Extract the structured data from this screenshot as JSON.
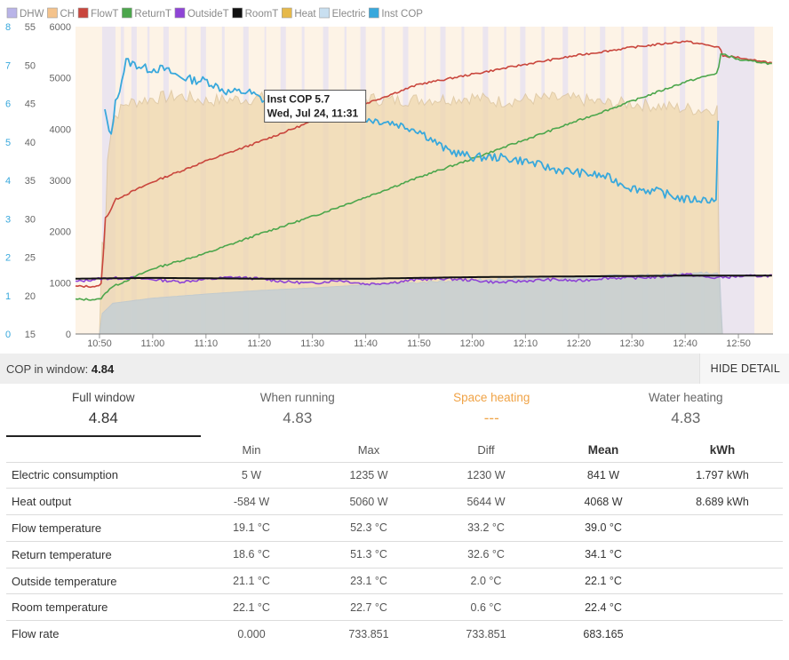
{
  "chart_data": {
    "type": "line",
    "legend": [
      {
        "name": "DHW",
        "color": "#b9b4e8"
      },
      {
        "name": "CH",
        "color": "#f4c38c"
      },
      {
        "name": "FlowT",
        "color": "#c9463d"
      },
      {
        "name": "ReturnT",
        "color": "#4ca64c"
      },
      {
        "name": "OutsideT",
        "color": "#8e44d6"
      },
      {
        "name": "RoomT",
        "color": "#111111"
      },
      {
        "name": "Heat",
        "color": "#e6b94a"
      },
      {
        "name": "Electric",
        "color": "#c8dff0"
      },
      {
        "name": "Inst COP",
        "color": "#38a8dc"
      }
    ],
    "axes": {
      "power": {
        "min": 0,
        "max": 6000,
        "ticks": [
          "0",
          "1000",
          "2000",
          "3000",
          "4000",
          "5000",
          "6000"
        ]
      },
      "temp": {
        "min": 15,
        "max": 55,
        "ticks": [
          "15",
          "20",
          "25",
          "30",
          "35",
          "40",
          "45",
          "50",
          "55"
        ]
      },
      "cop": {
        "min": 0,
        "max": 8,
        "ticks": [
          "0",
          "1",
          "2",
          "3",
          "4",
          "5",
          "6",
          "7",
          "8"
        ]
      },
      "time": {
        "start_min": 645.5,
        "end_min": 776.5,
        "ticks": [
          [
            "10:50",
            650
          ],
          [
            "11:00",
            660
          ],
          [
            "11:10",
            670
          ],
          [
            "11:20",
            680
          ],
          [
            "11:30",
            690
          ],
          [
            "11:40",
            700
          ],
          [
            "11:50",
            710
          ],
          [
            "12:00",
            720
          ],
          [
            "12:10",
            730
          ],
          [
            "12:20",
            740
          ],
          [
            "12:30",
            750
          ],
          [
            "12:40",
            760
          ],
          [
            "12:50",
            770
          ]
        ]
      }
    },
    "series": [
      {
        "name": "FlowT",
        "unit": "°C",
        "x": [
          645.5,
          650,
          650.5,
          651,
          652,
          653,
          660,
          670,
          680,
          690,
          700,
          710,
          720,
          730,
          740,
          750,
          760,
          766.5,
          767,
          770,
          772,
          774,
          776.5
        ],
        "y": [
          21.2,
          21.2,
          22,
          30,
          31,
          32.5,
          34.8,
          37.5,
          40,
          42.7,
          45,
          47.5,
          48.8,
          50.1,
          51.3,
          52.3,
          53.1,
          52.3,
          51.2,
          51,
          50.6,
          50.6,
          50.2
        ]
      },
      {
        "name": "ReturnT",
        "unit": "°C",
        "x": [
          645.5,
          650,
          650.5,
          651,
          652,
          660,
          670,
          680,
          690,
          700,
          710,
          720,
          730,
          740,
          750,
          760,
          766.2,
          766.5,
          767,
          770,
          772,
          774,
          776.5
        ],
        "y": [
          19.5,
          19.5,
          19.8,
          20.2,
          21,
          23.5,
          25.5,
          28,
          30.3,
          32.8,
          35.4,
          37.8,
          40.3,
          42.8,
          45.3,
          47.8,
          49,
          51.2,
          51.5,
          50.7,
          50.5,
          50.4,
          50.1
        ]
      },
      {
        "name": "OutsideT",
        "unit": "°C",
        "x": [
          645.5,
          650,
          655,
          660,
          665,
          670,
          675,
          680,
          685,
          690,
          695,
          700,
          705,
          710,
          715,
          720,
          725,
          730,
          735,
          740,
          745,
          750,
          755,
          760,
          765,
          770,
          776.5
        ],
        "y": [
          21.8,
          22.2,
          22.3,
          22.1,
          21.8,
          22.1,
          22.4,
          22.2,
          21.8,
          21.6,
          22,
          21.5,
          21.7,
          22.1,
          22.2,
          22.0,
          21.7,
          21.9,
          22.1,
          21.9,
          22.3,
          22.3,
          22.4,
          22.8,
          22.3,
          22.5,
          22.6
        ]
      },
      {
        "name": "RoomT",
        "unit": "°C",
        "x": [
          645.5,
          660,
          680,
          700,
          720,
          740,
          760,
          776.5
        ],
        "y": [
          22.2,
          22.3,
          22.2,
          22.2,
          22.4,
          22.5,
          22.6,
          22.6
        ]
      },
      {
        "name": "Heat",
        "unit": "W",
        "x": [
          645.5,
          650,
          650.5,
          650.8,
          651.5,
          652.5,
          655,
          660,
          665,
          670,
          675,
          680,
          685,
          690,
          695,
          700,
          705,
          710,
          715,
          720,
          725,
          730,
          735,
          740,
          745,
          750,
          755,
          760,
          763,
          766,
          766.2,
          766.5,
          767,
          776.5
        ],
        "y": [
          0,
          0,
          1800,
          900,
          3500,
          4200,
          4500,
          4600,
          4650,
          4550,
          4580,
          4600,
          4620,
          4580,
          4600,
          4600,
          4560,
          4580,
          4590,
          4620,
          4540,
          4580,
          4600,
          4580,
          4500,
          4500,
          4450,
          4400,
          4380,
          4400,
          1500,
          600,
          0,
          0
        ]
      },
      {
        "name": "Electric",
        "unit": "W",
        "x": [
          645.5,
          650,
          650.5,
          651.5,
          652.5,
          660,
          670,
          680,
          690,
          700,
          710,
          720,
          730,
          740,
          750,
          760,
          765,
          766.2,
          766.5,
          767,
          776.5
        ],
        "y": [
          0,
          0,
          400,
          500,
          600,
          700,
          780,
          850,
          900,
          960,
          1010,
          1050,
          1080,
          1110,
          1140,
          1170,
          1200,
          1230,
          1100,
          0,
          0
        ]
      },
      {
        "name": "Inst COP",
        "unit": "",
        "x": [
          651,
          651.5,
          652,
          653,
          654,
          655,
          657,
          659,
          662,
          665,
          668,
          670,
          674,
          678,
          682,
          686,
          690,
          695,
          700,
          705,
          710,
          715,
          720,
          725,
          730,
          735,
          740,
          745,
          750,
          755,
          760,
          763,
          765.5,
          766,
          766.2
        ],
        "y": [
          5.8,
          5.5,
          5.0,
          6.0,
          6.5,
          7.1,
          7.0,
          6.9,
          6.9,
          6.7,
          6.6,
          6.6,
          6.3,
          6.3,
          6.0,
          5.9,
          5.8,
          5.7,
          5.6,
          5.5,
          5.3,
          4.8,
          4.6,
          4.6,
          4.5,
          4.3,
          4.2,
          4.1,
          3.8,
          3.7,
          3.5,
          3.5,
          3.5,
          3.4,
          5.5
        ]
      }
    ],
    "tooltip": {
      "line1": "Inst COP 5.7",
      "line2": "Wed, Jul 24, 11:31",
      "anchor_min": 691,
      "anchor_cop": 5.7
    }
  },
  "summary": {
    "label": "COP in window:",
    "value": "4.84",
    "hide_detail": "HIDE DETAIL"
  },
  "tabs": [
    {
      "label": "Full window",
      "value": "4.84"
    },
    {
      "label": "When running",
      "value": "4.83"
    },
    {
      "label": "Space heating",
      "value": "---"
    },
    {
      "label": "Water heating",
      "value": "4.83"
    }
  ],
  "stats": {
    "headers": [
      "",
      "Min",
      "Max",
      "Diff",
      "Mean",
      "kWh"
    ],
    "rows": [
      {
        "label": "Electric consumption",
        "min": "5 W",
        "max": "1235 W",
        "diff": "1230 W",
        "mean": "841 W",
        "kwh": "1.797 kWh"
      },
      {
        "label": "Heat output",
        "min": "-584 W",
        "max": "5060 W",
        "diff": "5644 W",
        "mean": "4068 W",
        "kwh": "8.689 kWh"
      },
      {
        "label": "Flow temperature",
        "min": "19.1 °C",
        "max": "52.3 °C",
        "diff": "33.2 °C",
        "mean": "39.0 °C",
        "kwh": ""
      },
      {
        "label": "Return temperature",
        "min": "18.6 °C",
        "max": "51.3 °C",
        "diff": "32.6 °C",
        "mean": "34.1 °C",
        "kwh": ""
      },
      {
        "label": "Outside temperature",
        "min": "21.1 °C",
        "max": "23.1 °C",
        "diff": "2.0 °C",
        "mean": "22.1 °C",
        "kwh": ""
      },
      {
        "label": "Room temperature",
        "min": "22.1 °C",
        "max": "22.7 °C",
        "diff": "0.6 °C",
        "mean": "22.4 °C",
        "kwh": ""
      },
      {
        "label": "Flow rate",
        "min": "0.000",
        "max": "733.851",
        "diff": "733.851",
        "mean": "683.165",
        "kwh": ""
      }
    ]
  }
}
